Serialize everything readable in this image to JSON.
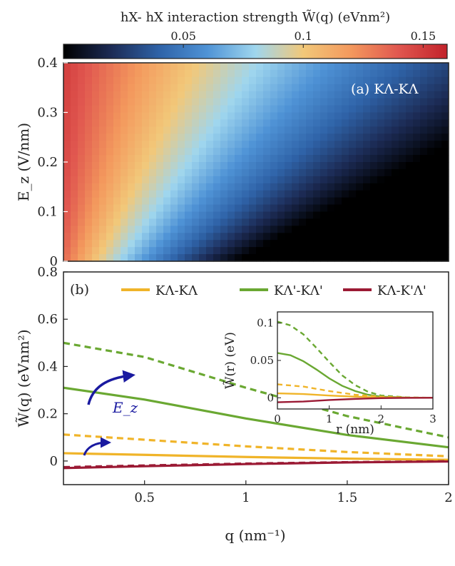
{
  "colorbar": {
    "title": "hX- hX interaction strength W̃(q) (eVnm²)",
    "ticks": [
      {
        "value": 0.05,
        "label": "0.05"
      },
      {
        "value": 0.1,
        "label": "0.1"
      },
      {
        "value": 0.15,
        "label": "0.15"
      }
    ],
    "range": [
      0.0,
      0.16
    ],
    "colormap": [
      "#000000",
      "#1c2b55",
      "#2f63a8",
      "#4f93d6",
      "#9fd6ee",
      "#f2c879",
      "#f3985d",
      "#e0564f",
      "#c2222a"
    ]
  },
  "chart_data": [
    {
      "type": "heatmap",
      "panel_label": "(a) KΛ-KΛ",
      "xlabel": "",
      "ylabel": "E_z (V/nm)",
      "x_range": [
        0.1,
        2
      ],
      "ylim": [
        0,
        0.4
      ],
      "yticks": [
        {
          "value": 0,
          "label": "0"
        },
        {
          "value": 0.1,
          "label": "0.1"
        },
        {
          "value": 0.2,
          "label": "0.2"
        },
        {
          "value": 0.3,
          "label": "0.3"
        },
        {
          "value": 0.4,
          "label": "0.4"
        }
      ]
    },
    {
      "type": "line",
      "panel_label": "(b)",
      "xlabel": "q (nm⁻¹)",
      "ylabel": "W̃(q) (eVnm²)",
      "xlim": [
        0.1,
        2
      ],
      "ylim": [
        -0.1,
        0.8
      ],
      "xticks": [
        {
          "value": 0.5,
          "label": "0.5"
        },
        {
          "value": 1,
          "label": "1"
        },
        {
          "value": 1.5,
          "label": "1.5"
        },
        {
          "value": 2,
          "label": "2"
        }
      ],
      "yticks": [
        {
          "value": 0,
          "label": "0"
        },
        {
          "value": 0.2,
          "label": "0.2"
        },
        {
          "value": 0.4,
          "label": "0.4"
        },
        {
          "value": 0.6,
          "label": "0.6"
        },
        {
          "value": 0.8,
          "label": "0.8"
        }
      ],
      "legend": {
        "placement": "top"
      },
      "annotation": "E_z",
      "series": [
        {
          "name": "KΛ-KΛ",
          "color": "#f0b429",
          "style": "solid",
          "x": [
            0.1,
            0.5,
            1,
            1.5,
            2
          ],
          "y": [
            0.033,
            0.026,
            0.017,
            0.01,
            0.005
          ]
        },
        {
          "name": "",
          "color": "#f0b429",
          "style": "dashed",
          "x": [
            0.1,
            0.5,
            1,
            1.5,
            2
          ],
          "y": [
            0.112,
            0.09,
            0.062,
            0.038,
            0.02
          ]
        },
        {
          "name": "KΛ'-KΛ'",
          "color": "#6aa832",
          "style": "solid",
          "x": [
            0.1,
            0.5,
            1,
            1.5,
            2
          ],
          "y": [
            0.31,
            0.26,
            0.18,
            0.11,
            0.058
          ]
        },
        {
          "name": "",
          "color": "#6aa832",
          "style": "dashed",
          "x": [
            0.1,
            0.5,
            1,
            1.5,
            2
          ],
          "y": [
            0.5,
            0.44,
            0.31,
            0.19,
            0.1
          ]
        },
        {
          "name": "KΛ-K'Λ'",
          "color": "#9b1a34",
          "style": "solid",
          "x": [
            0.1,
            0.5,
            1,
            1.5,
            2
          ],
          "y": [
            -0.03,
            -0.022,
            -0.013,
            -0.006,
            -0.002
          ]
        },
        {
          "name": "",
          "color": "#9b1a34",
          "style": "dashed",
          "x": [
            0.1,
            0.5,
            1,
            1.5,
            2
          ],
          "y": [
            -0.026,
            -0.019,
            -0.011,
            -0.005,
            -0.001
          ]
        }
      ]
    },
    {
      "type": "line",
      "panel_label": "",
      "xlabel": "r (nm)",
      "ylabel": "W̃(r) (eV)",
      "xlim": [
        0,
        3
      ],
      "ylim": [
        -0.015,
        0.115
      ],
      "xticks": [
        {
          "value": 0,
          "label": "0"
        },
        {
          "value": 1,
          "label": "1"
        },
        {
          "value": 2,
          "label": "2"
        },
        {
          "value": 3,
          "label": "3"
        }
      ],
      "yticks": [
        {
          "value": 0,
          "label": "0"
        },
        {
          "value": 0.05,
          "label": "0.05"
        },
        {
          "value": 0.1,
          "label": "0.1"
        }
      ],
      "series": [
        {
          "name": "",
          "color": "#6aa832",
          "style": "dashed",
          "x": [
            0,
            0.25,
            0.5,
            0.75,
            1,
            1.25,
            1.5,
            1.75,
            2,
            2.5,
            3
          ],
          "y": [
            0.102,
            0.097,
            0.085,
            0.067,
            0.048,
            0.03,
            0.017,
            0.008,
            0.003,
            0.0005,
            0
          ]
        },
        {
          "name": "",
          "color": "#6aa832",
          "style": "solid",
          "x": [
            0,
            0.25,
            0.5,
            0.75,
            1,
            1.25,
            1.5,
            1.75,
            2,
            2.5,
            3
          ],
          "y": [
            0.06,
            0.057,
            0.049,
            0.038,
            0.026,
            0.016,
            0.009,
            0.004,
            0.0015,
            0.0002,
            0
          ]
        },
        {
          "name": "",
          "color": "#f0b429",
          "style": "dashed",
          "x": [
            0,
            0.5,
            1,
            1.5,
            2,
            2.5,
            3
          ],
          "y": [
            0.018,
            0.015,
            0.009,
            0.004,
            0.0015,
            0.0003,
            0
          ]
        },
        {
          "name": "",
          "color": "#f0b429",
          "style": "solid",
          "x": [
            0,
            0.5,
            1,
            1.5,
            2,
            2.5,
            3
          ],
          "y": [
            0.006,
            0.005,
            0.003,
            0.0015,
            0.0005,
            0.0001,
            0
          ]
        },
        {
          "name": "",
          "color": "#9b1a34",
          "style": "solid",
          "x": [
            0,
            0.5,
            1,
            1.5,
            2,
            2.5,
            3
          ],
          "y": [
            -0.006,
            -0.005,
            -0.003,
            -0.0015,
            -0.0005,
            -0.0001,
            0
          ]
        }
      ]
    }
  ]
}
